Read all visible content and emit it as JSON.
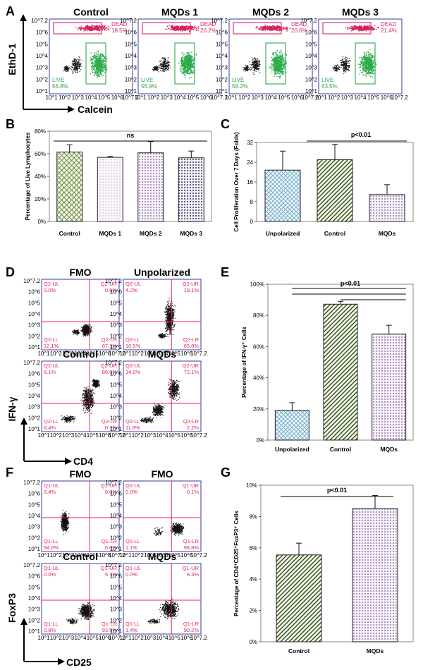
{
  "panels": {
    "A": "A",
    "B": "B",
    "C": "C",
    "D": "D",
    "E": "E",
    "F": "F",
    "G": "G"
  },
  "flowA": {
    "y_label": "EthD-1",
    "x_label": "Calcein",
    "plots": [
      {
        "title": "Control",
        "dead_label": "DEAD",
        "dead": "18.5%",
        "live_label": "LIVE",
        "live": "56.8%"
      },
      {
        "title": "MQDs 1",
        "dead_label": "DEAD",
        "dead": "20.2%",
        "live_label": "LIVE",
        "live": "56.9%"
      },
      {
        "title": "MQDs 2",
        "dead_label": "DEAD",
        "dead": "20.6%",
        "live_label": "LIVE",
        "live": "59.2%"
      },
      {
        "title": "MQDs 3",
        "dead_label": "DEAD",
        "dead": "21.4%",
        "live_label": "LIVE",
        "live": "63.5%"
      }
    ]
  },
  "flowD": {
    "y_label": "IFN-γ",
    "x_label": "CD4",
    "plots": [
      {
        "title": "FMO",
        "q": [
          {
            "name": "Q2-UL",
            "val": "0.0%"
          },
          {
            "name": "Q2-UR",
            "val": "0.5%"
          },
          {
            "name": "Q2-LL",
            "val": "12.1%"
          },
          {
            "name": "Q2-LR",
            "val": "87.3%"
          }
        ]
      },
      {
        "title": "Unpolarized",
        "q": [
          {
            "name": "Q2-UL",
            "val": "4.2%"
          },
          {
            "name": "Q2-UR",
            "val": "19.1%"
          },
          {
            "name": "Q2-LL",
            "val": "10.9%"
          },
          {
            "name": "Q2-LR",
            "val": "65.8%"
          }
        ]
      },
      {
        "title": "Control",
        "q": [
          {
            "name": "Q2-UL",
            "val": "6.1%"
          },
          {
            "name": "Q2-UR",
            "val": "86.9%"
          },
          {
            "name": "Q2-LL",
            "val": "6.4%"
          },
          {
            "name": "Q2-LR",
            "val": "0.7%"
          }
        ]
      },
      {
        "title": "MQDs",
        "q": [
          {
            "name": "Q2-UL",
            "val": "14.0%"
          },
          {
            "name": "Q2-UR",
            "val": "72.1%"
          },
          {
            "name": "Q2-LL",
            "val": "11.8%"
          },
          {
            "name": "Q2-LR",
            "val": "2.2%"
          }
        ]
      }
    ]
  },
  "flowF": {
    "y_label": "FoxP3",
    "x_label": "CD25",
    "plots": [
      {
        "title": "FMO",
        "q": [
          {
            "name": "Q1-UL",
            "val": "5.4%"
          },
          {
            "name": "Q1-UR",
            "val": "0.0%"
          },
          {
            "name": "Q1-LL",
            "val": "94.6%"
          },
          {
            "name": "Q1-LR",
            "val": "0.0%"
          }
        ]
      },
      {
        "title": "FMO",
        "q": [
          {
            "name": "Q1-UL",
            "val": "0.0%"
          },
          {
            "name": "Q1-UR",
            "val": "0.1%"
          },
          {
            "name": "Q1-LL",
            "val": "1.1%"
          },
          {
            "name": "Q1-LR",
            "val": "98.8%"
          }
        ]
      },
      {
        "title": "Control",
        "q": [
          {
            "name": "Q1-UL",
            "val": "0.0%"
          },
          {
            "name": "Q1-UR",
            "val": "5.7%"
          },
          {
            "name": "Q1-LL",
            "val": "0.8%"
          },
          {
            "name": "Q1-LR",
            "val": "93.5%"
          }
        ]
      },
      {
        "title": "MQDs",
        "q": [
          {
            "name": "Q1-UL",
            "val": "0.0%"
          },
          {
            "name": "Q1-UR",
            "val": "8.3%"
          },
          {
            "name": "Q1-LL",
            "val": "1.4%"
          },
          {
            "name": "Q1-LR",
            "val": "90.2%"
          }
        ]
      }
    ]
  },
  "flow_tick_labels": [
    "10^1",
    "10^2",
    "10^3",
    "10^4",
    "10^5",
    "10^6",
    "10^7.2"
  ],
  "chart_data": [
    {
      "id": "B",
      "type": "bar",
      "ylabel": "Percentage of Live Lymphocytes",
      "categories": [
        "Control",
        "MQDs 1",
        "MQDs 2",
        "MQDs 3"
      ],
      "values": [
        61.5,
        56.8,
        60.8,
        56.4
      ],
      "errors": [
        6.5,
        0.8,
        10.0,
        6.0
      ],
      "yticks": [
        "0%",
        "20%",
        "40%",
        "60%",
        "80%"
      ],
      "ylim": [
        0,
        80
      ],
      "significance": "ns",
      "patterns": [
        "crosshatch-green",
        "dots-pink",
        "dots-purple",
        "dots-navy"
      ]
    },
    {
      "id": "C",
      "type": "bar",
      "ylabel": "Cell Proliferation Over 7 Days (Folds)",
      "categories": [
        "Unpolarized",
        "Control",
        "MQDs"
      ],
      "values": [
        20.8,
        25.0,
        10.9
      ],
      "errors": [
        7.7,
        6.2,
        4.0
      ],
      "yticks": [
        "0",
        "8",
        "16",
        "24",
        "32"
      ],
      "ylim": [
        0,
        32
      ],
      "significance": "p<0.01",
      "patterns": [
        "crosshatch-blue",
        "diag-green",
        "dots-purple"
      ]
    },
    {
      "id": "E",
      "type": "bar",
      "ylabel": "Percentage of IFN-γ⁺ Cells",
      "categories": [
        "Unpolarized",
        "Control",
        "MQDs"
      ],
      "values": [
        19.0,
        87.2,
        68.0
      ],
      "errors": [
        5.0,
        1.8,
        5.7
      ],
      "yticks": [
        "0%",
        "20%",
        "40%",
        "60%",
        "80%",
        "100%"
      ],
      "ylim": [
        0,
        100
      ],
      "significance": "p<0.01",
      "patterns": [
        "crosshatch-blue",
        "diag-green",
        "dots-purple"
      ]
    },
    {
      "id": "G",
      "type": "bar",
      "ylabel": "Percentage of CD4⁺CD25⁺FoxP3⁺ Cells",
      "categories": [
        "Control",
        "MQDs"
      ],
      "values": [
        5.55,
        8.5
      ],
      "errors": [
        0.75,
        0.85
      ],
      "yticks": [
        "0%",
        "2%",
        "4%",
        "6%",
        "8%",
        "10%"
      ],
      "ylim": [
        0,
        10
      ],
      "significance": "p<0.01",
      "patterns": [
        "diag-green",
        "dots-purple"
      ]
    }
  ]
}
